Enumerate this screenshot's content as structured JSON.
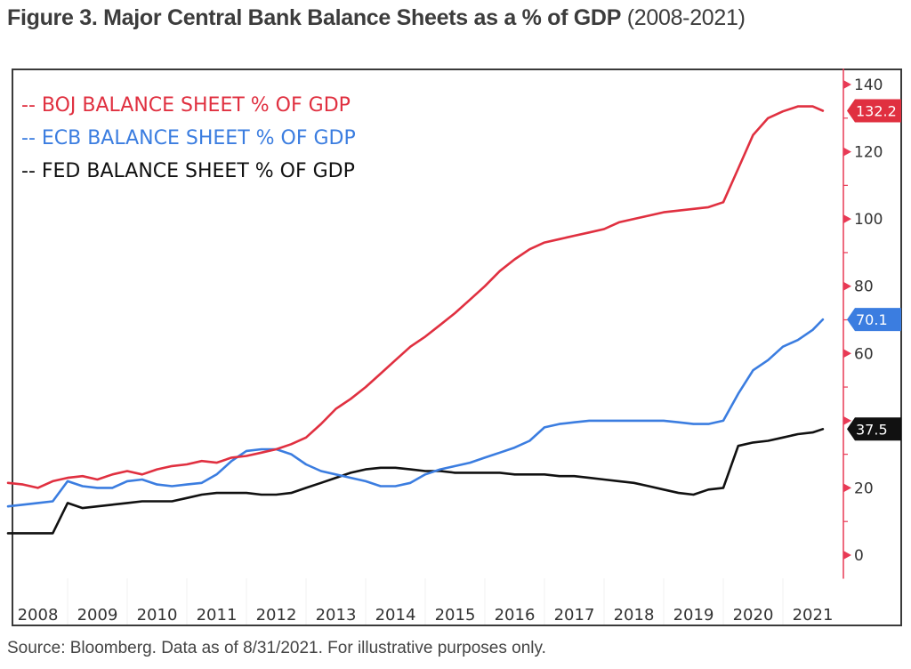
{
  "figure": {
    "title_bold": "Figure 3. Major Central Bank Balance Sheets as a % of GDP",
    "title_suffix": "(2008-2021)",
    "source": "Source: Bloomberg. Data as of 8/31/2021. For illustrative purposes only."
  },
  "chart_data": {
    "type": "line",
    "title": "Figure 3. Major Central Bank Balance Sheets as a % of GDP (2008-2021)",
    "xlabel": "",
    "ylabel": "",
    "x_ticks": [
      "2008",
      "2009",
      "2010",
      "2011",
      "2012",
      "2013",
      "2014",
      "2015",
      "2016",
      "2017",
      "2018",
      "2019",
      "2020",
      "2021"
    ],
    "xlim": [
      2008.0,
      2021.75
    ],
    "y_ticks": [
      0,
      20,
      40,
      60,
      80,
      100,
      120,
      140
    ],
    "y_tick_labels": [
      "0",
      "20",
      "",
      "60",
      "80",
      "100",
      "120",
      "140"
    ],
    "ylim": [
      -7,
      148
    ],
    "y_axis_side": "right",
    "grid": false,
    "legend_position": "top-left",
    "colors": {
      "boj": "#e03040",
      "ecb": "#3b7de0",
      "fed": "#111111",
      "axis": "#e83a55"
    },
    "x": [
      2008.0,
      2008.25,
      2008.5,
      2008.75,
      2009.0,
      2009.25,
      2009.5,
      2009.75,
      2010.0,
      2010.25,
      2010.5,
      2010.75,
      2011.0,
      2011.25,
      2011.5,
      2011.75,
      2012.0,
      2012.25,
      2012.5,
      2012.75,
      2013.0,
      2013.25,
      2013.5,
      2013.75,
      2014.0,
      2014.25,
      2014.5,
      2014.75,
      2015.0,
      2015.25,
      2015.5,
      2015.75,
      2016.0,
      2016.25,
      2016.5,
      2016.75,
      2017.0,
      2017.25,
      2017.5,
      2017.75,
      2018.0,
      2018.25,
      2018.5,
      2018.75,
      2019.0,
      2019.25,
      2019.5,
      2019.75,
      2020.0,
      2020.25,
      2020.5,
      2020.75,
      2021.0,
      2021.25,
      2021.5,
      2021.67
    ],
    "series": [
      {
        "name": "BOJ BALANCE SHEET % OF GDP",
        "key": "boj",
        "values": [
          21.5,
          21.0,
          20.0,
          22.0,
          23.0,
          23.5,
          22.5,
          24.0,
          25.0,
          24.0,
          25.5,
          26.5,
          27.0,
          28.0,
          27.5,
          29.0,
          29.5,
          30.5,
          31.5,
          33.0,
          35.0,
          39.0,
          43.5,
          46.5,
          50.0,
          54.0,
          58.0,
          62.0,
          65.0,
          68.5,
          72.0,
          76.0,
          80.0,
          84.5,
          88.0,
          91.0,
          93.0,
          94.0,
          95.0,
          96.0,
          97.0,
          99.0,
          100.0,
          101.0,
          102.0,
          102.5,
          103.0,
          103.5,
          105.0,
          115.0,
          125.0,
          130.0,
          132.0,
          133.5,
          133.5,
          132.2
        ]
      },
      {
        "name": "ECB BALANCE SHEET % OF GDP",
        "key": "ecb",
        "values": [
          14.5,
          15.0,
          15.5,
          16.0,
          22.0,
          20.5,
          20.0,
          20.0,
          22.0,
          22.5,
          21.0,
          20.5,
          21.0,
          21.5,
          24.0,
          28.0,
          31.0,
          31.5,
          31.5,
          30.0,
          27.0,
          25.0,
          24.0,
          23.0,
          22.0,
          20.5,
          20.5,
          21.5,
          24.0,
          25.5,
          26.5,
          27.5,
          29.0,
          30.5,
          32.0,
          34.0,
          38.0,
          39.0,
          39.5,
          40.0,
          40.0,
          40.0,
          40.0,
          40.0,
          40.0,
          39.5,
          39.0,
          39.0,
          40.0,
          48.0,
          55.0,
          58.0,
          62.0,
          64.0,
          67.0,
          70.1
        ]
      },
      {
        "name": "FED BALANCE SHEET % OF GDP",
        "key": "fed",
        "values": [
          6.5,
          6.5,
          6.5,
          6.5,
          15.5,
          14.0,
          14.5,
          15.0,
          15.5,
          16.0,
          16.0,
          16.0,
          17.0,
          18.0,
          18.5,
          18.5,
          18.5,
          18.0,
          18.0,
          18.5,
          20.0,
          21.5,
          23.0,
          24.5,
          25.5,
          26.0,
          26.0,
          25.5,
          25.0,
          25.0,
          24.5,
          24.5,
          24.5,
          24.5,
          24.0,
          24.0,
          24.0,
          23.5,
          23.5,
          23.0,
          22.5,
          22.0,
          21.5,
          20.5,
          19.5,
          18.5,
          18.0,
          19.5,
          20.0,
          32.5,
          33.5,
          34.0,
          35.0,
          36.0,
          36.5,
          37.5
        ]
      }
    ],
    "last_value_badges": [
      {
        "series": "boj",
        "label": "132.2",
        "value": 132.2
      },
      {
        "series": "ecb",
        "label": "70.1",
        "value": 70.1
      },
      {
        "series": "fed",
        "label": "37.5",
        "value": 37.5
      }
    ],
    "legend": [
      {
        "key": "boj",
        "prefix": "--",
        "label": "BOJ BALANCE SHEET % OF GDP"
      },
      {
        "key": "ecb",
        "prefix": "--",
        "label": "ECB BALANCE SHEET % OF GDP"
      },
      {
        "key": "fed",
        "prefix": "--",
        "label": "FED BALANCE SHEET % OF GDP"
      }
    ]
  }
}
